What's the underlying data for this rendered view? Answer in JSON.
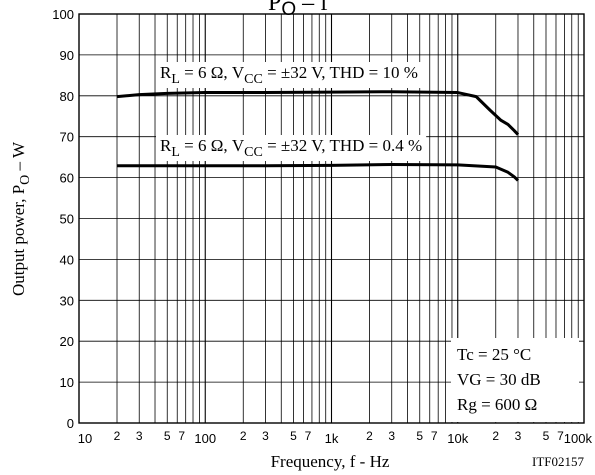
{
  "chart_data": {
    "type": "line",
    "title": "PO – f",
    "xlabel": "Frequency, f - Hz",
    "ylabel": "Output power, PO – W",
    "x_scale": "log",
    "xlim": [
      10,
      100000
    ],
    "ylim": [
      0,
      100
    ],
    "x_major_ticks": [
      {
        "value": 10,
        "label": "10"
      },
      {
        "value": 100,
        "label": "100"
      },
      {
        "value": 1000,
        "label": "1k"
      },
      {
        "value": 10000,
        "label": "10k"
      },
      {
        "value": 100000,
        "label": "100k"
      }
    ],
    "x_minor_tick_labels": [
      "2",
      "3",
      "5",
      "7"
    ],
    "y_ticks": [
      0,
      10,
      20,
      30,
      40,
      50,
      60,
      70,
      80,
      90,
      100
    ],
    "grid": true,
    "series": [
      {
        "label": "RL = 6 Ω, VCC = ±32 V, THD = 10 %",
        "x": [
          20,
          30,
          50,
          100,
          300,
          1000,
          3000,
          10000,
          14000,
          18000,
          22000,
          25000,
          28000,
          30000
        ],
        "y": [
          79.8,
          80.3,
          80.6,
          80.8,
          80.8,
          80.9,
          81.0,
          80.8,
          79.8,
          76.5,
          74.0,
          73.0,
          71.5,
          70.5
        ]
      },
      {
        "label": "RL = 6 Ω, VCC = ±32 V, THD = 0.4 %",
        "x": [
          20,
          50,
          100,
          300,
          1000,
          3000,
          10000,
          20000,
          25000,
          28000,
          30000
        ],
        "y": [
          62.9,
          62.9,
          62.9,
          62.9,
          63.0,
          63.2,
          63.1,
          62.6,
          61.3,
          60.2,
          59.3
        ]
      }
    ],
    "annotations": {
      "conditions": [
        "Tc = 25 °C",
        "VG = 30 dB",
        "Rg = 600 Ω"
      ],
      "code": "ITF02157"
    }
  }
}
